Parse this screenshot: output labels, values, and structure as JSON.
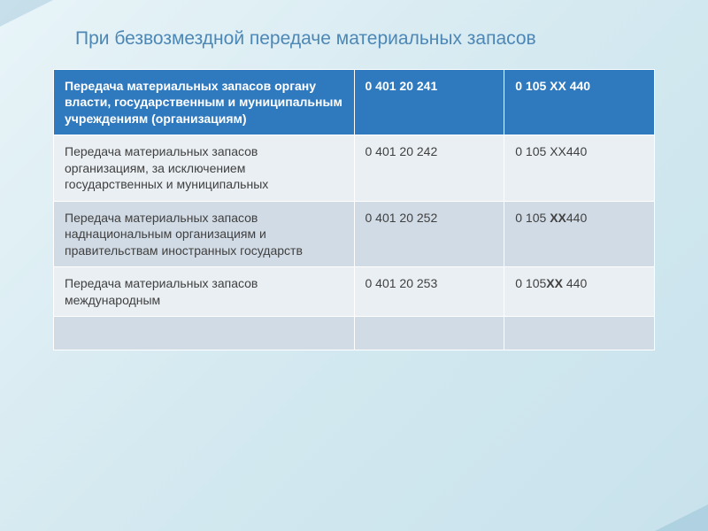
{
  "slide": {
    "title": "При безвозмездной передаче материальных запасов",
    "title_color": "#4d87b5",
    "title_fontsize": 21
  },
  "table": {
    "type": "table",
    "background_colors": {
      "header": "#2f7abf",
      "row_light": "#eaeff3",
      "row_mid": "#d1dbe5",
      "border": "#ffffff"
    },
    "text_colors": {
      "header": "#ffffff",
      "body": "#404040"
    },
    "column_widths": [
      "50%",
      "25%",
      "25%"
    ],
    "header": {
      "c1": "Передача материальных запасов органу власти, государственным и муниципальным учреждениям (организациям)",
      "c2": "0 401 20 241",
      "c3": "0 105 ХХ 440"
    },
    "rows": [
      {
        "shade": "light",
        "c1": "Передача материальных запасов организациям, за исключением государственных и муниципальных",
        "c2": "0 401 20 242",
        "c3_pre": "0 105 ",
        "c3_bold": "ХХ",
        "c3_post": "440"
      },
      {
        "shade": "mid",
        "c1": "Передача материальных запасов наднациональным организациям и правительствам иностранных государств",
        "c2": "0 401 20 252",
        "c3_pre": "0 105 ",
        "c3_bold": "ХХ",
        "c3_post": "440"
      },
      {
        "shade": "light",
        "c1": "Передача материальных запасов международным",
        "c2": "0 401 20 253",
        "c3_pre": "0 105",
        "c3_bold": "ХХ",
        "c3_post": " 440"
      },
      {
        "shade": "mid",
        "c1": "",
        "c2": "",
        "c3_pre": "",
        "c3_bold": "",
        "c3_post": ""
      }
    ]
  },
  "background": {
    "gradient_start": "#e8f4f8",
    "gradient_mid": "#d4e9f0",
    "gradient_end": "#c8e2ec"
  }
}
